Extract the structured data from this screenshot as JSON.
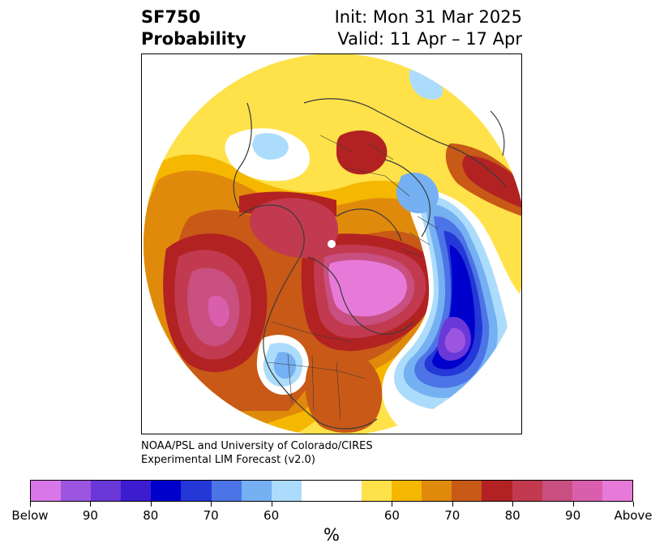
{
  "header": {
    "variable": "SF750",
    "subtitle": "Probability",
    "init": "Init: Mon 31 Mar 2025",
    "valid": "Valid: 11 Apr – 17 Apr"
  },
  "credit": {
    "line1": "NOAA/PSL and University of Colorado/CIRES",
    "line2": "Experimental LIM Forecast (v2.0)"
  },
  "colorbar": {
    "colors": [
      "#d877e8",
      "#9b55e0",
      "#6a37d8",
      "#3c1ccf",
      "#0000cc",
      "#2338d6",
      "#4d74e6",
      "#75b0f2",
      "#acdcfb",
      "#ffffff",
      "#ffffff",
      "#ffe14a",
      "#f5b700",
      "#e08a0c",
      "#c85916",
      "#b22222",
      "#c23a4f",
      "#c84f7f",
      "#d95fad",
      "#e77ad8"
    ],
    "labels": [
      "Below",
      "90",
      "80",
      "70",
      "60",
      "60",
      "70",
      "80",
      "90",
      "Above"
    ],
    "units": "%"
  },
  "map": {
    "projection": "north-polar-stereographic",
    "field": "probability-anomaly",
    "colors": {
      "above_light": "#ffe14a",
      "above_60": "#f5b700",
      "above_70": "#e08a0c",
      "above_75": "#c85916",
      "above_80": "#b22222",
      "above_85": "#c23a4f",
      "above_90": "#c84f7f",
      "above_max": "#e77ad8",
      "below_light": "#acdcfb",
      "below_60": "#75b0f2",
      "below_70": "#4d74e6",
      "below_75": "#2338d6",
      "below_80": "#0000cc",
      "below_90": "#6a37d8",
      "below_max": "#9b55e0",
      "coast": "#3a3a3a"
    }
  }
}
